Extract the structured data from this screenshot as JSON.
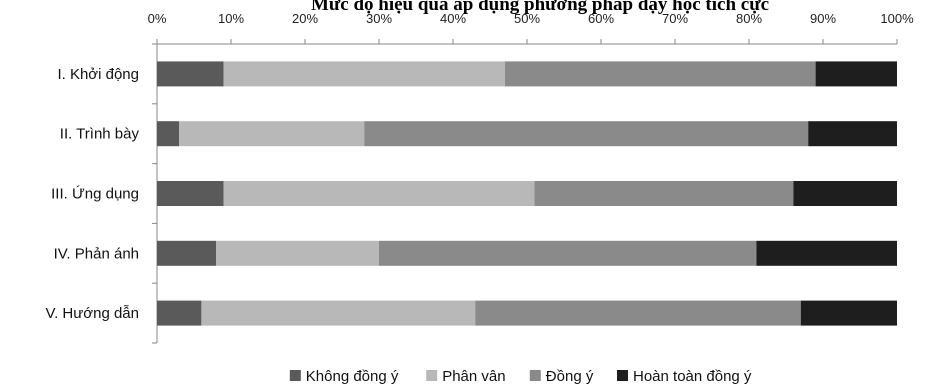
{
  "chart_data": {
    "type": "bar",
    "orientation": "horizontal",
    "stacked": "percent",
    "title": "Mức độ hiệu quả áp dụng phương pháp dạy học tích cực",
    "categories": [
      "I. Khởi động",
      "II. Trình bày",
      "III. Ứng dụng",
      "IV. Phản ánh",
      "V. Hướng dẫn"
    ],
    "series": [
      {
        "name": "Không đồng ý",
        "color": "#5a5a5a",
        "values": [
          9,
          3,
          9,
          8,
          6
        ]
      },
      {
        "name": "Phân vân",
        "color": "#b8b8b8",
        "values": [
          38,
          25,
          42,
          22,
          37
        ]
      },
      {
        "name": "Đồng ý",
        "color": "#8a8a8a",
        "values": [
          42,
          60,
          35,
          51,
          44
        ]
      },
      {
        "name": "Hoàn toàn đồng ý",
        "color": "#1e1e1e",
        "values": [
          11,
          12,
          14,
          19,
          13
        ]
      }
    ],
    "xticks": [
      "0%",
      "10%",
      "20%",
      "30%",
      "40%",
      "50%",
      "60%",
      "70%",
      "80%",
      "90%",
      "100%"
    ],
    "xlim": [
      0,
      100
    ],
    "xaxis_position": "top",
    "grid": false,
    "legend": "bottom"
  }
}
